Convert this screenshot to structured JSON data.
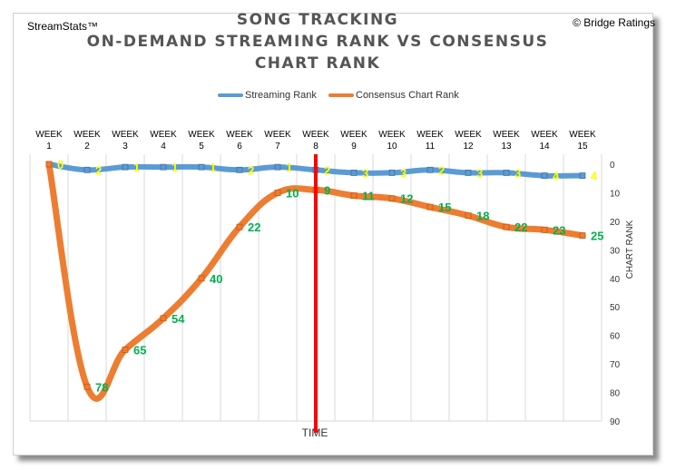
{
  "brand": "StreamStats™",
  "credit": "© Bridge Ratings",
  "chart_data": {
    "type": "line",
    "title_lines": [
      "SONG TRACKING",
      "ON-DEMAND STREAMING RANK VS CONSENSUS",
      "CHART RANK"
    ],
    "categories": [
      [
        "WEEK",
        "1"
      ],
      [
        "WEEK",
        "2"
      ],
      [
        "WEEK",
        "3"
      ],
      [
        "WEEK",
        "4"
      ],
      [
        "WEEK",
        "5"
      ],
      [
        "WEEK",
        "6"
      ],
      [
        "WEEK",
        "7"
      ],
      [
        "WEEK",
        "8"
      ],
      [
        "WEEK",
        "9"
      ],
      [
        "WEEK",
        "10"
      ],
      [
        "WEEK",
        "11"
      ],
      [
        "WEEK",
        "12"
      ],
      [
        "WEEK",
        "13"
      ],
      [
        "WEEK",
        "14"
      ],
      [
        "WEEK",
        "15"
      ]
    ],
    "series": [
      {
        "name": "Streaming Rank",
        "color": "#5b9bd5",
        "label_color": "#ffff00",
        "values": [
          0,
          2,
          1,
          1,
          1,
          2,
          1,
          2,
          3,
          3,
          2,
          3,
          3,
          4,
          4
        ]
      },
      {
        "name": "Consensus Chart Rank",
        "color": "#ed7d31",
        "label_color": "#00b050",
        "values": [
          0,
          78,
          65,
          54,
          40,
          22,
          10,
          9,
          11,
          12,
          15,
          18,
          22,
          23,
          25
        ]
      }
    ],
    "y_axis": {
      "title": "CHART RANK",
      "ticks": [
        0,
        10,
        20,
        30,
        40,
        50,
        60,
        70,
        80,
        90
      ],
      "reversed": true,
      "position": "right",
      "min": 0,
      "max": 90
    },
    "x_axis": {
      "title": "TIME",
      "position": "top"
    },
    "marker_line": {
      "week": 8,
      "color": "#ff0000"
    },
    "legend_position": "top",
    "gridlines": "vertical"
  }
}
